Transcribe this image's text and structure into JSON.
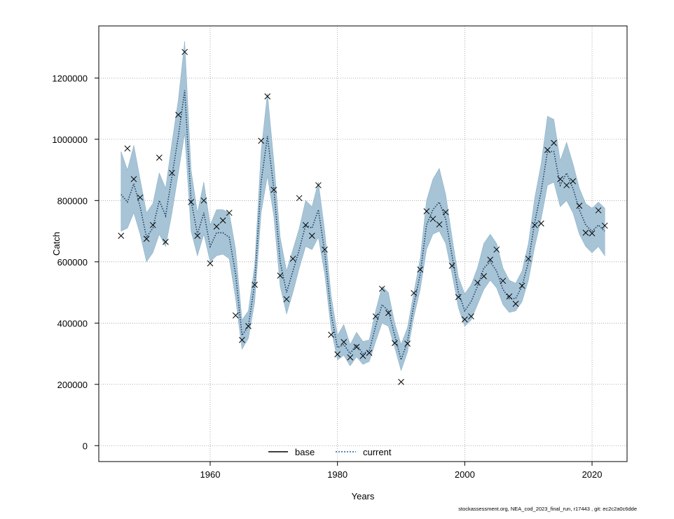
{
  "chart_data": {
    "type": "line",
    "xlabel": "Years",
    "ylabel": "Catch",
    "xlim": [
      1942.5,
      2025.5
    ],
    "ylim": [
      -52000,
      1370000
    ],
    "x_ticks": [
      1960,
      1980,
      2000,
      2020
    ],
    "y_ticks": [
      0,
      200000,
      400000,
      600000,
      800000,
      1000000,
      1200000
    ],
    "grid": true,
    "legend_position": "bottom-center",
    "colors": {
      "band": "#a6c4d6",
      "band_edge": "#8fb3c9",
      "current_line": "#1f3f66",
      "base_line": "#000000",
      "observed_marker": "#000000",
      "grid": "#999999"
    },
    "x": [
      1946,
      1947,
      1948,
      1949,
      1950,
      1951,
      1952,
      1953,
      1954,
      1955,
      1956,
      1957,
      1958,
      1959,
      1960,
      1961,
      1962,
      1963,
      1964,
      1965,
      1966,
      1967,
      1968,
      1969,
      1970,
      1971,
      1972,
      1973,
      1974,
      1975,
      1976,
      1977,
      1978,
      1979,
      1980,
      1981,
      1982,
      1983,
      1984,
      1985,
      1986,
      1987,
      1988,
      1989,
      1990,
      1991,
      1992,
      1993,
      1994,
      1995,
      1996,
      1997,
      1998,
      1999,
      2000,
      2001,
      2002,
      2003,
      2004,
      2005,
      2006,
      2007,
      2008,
      2009,
      2010,
      2011,
      2012,
      2013,
      2014,
      2015,
      2016,
      2017,
      2018,
      2019,
      2020,
      2021,
      2022
    ],
    "series": [
      {
        "name": "current",
        "style": "dotted",
        "estimate": [
          820000,
          795000,
          855000,
          780000,
          680000,
          710000,
          800000,
          750000,
          880000,
          1010000,
          1160000,
          800000,
          690000,
          760000,
          650000,
          695000,
          695000,
          680000,
          560000,
          360000,
          390000,
          530000,
          860000,
          1010000,
          840000,
          600000,
          500000,
          570000,
          640000,
          720000,
          710000,
          770000,
          630000,
          430000,
          320000,
          330000,
          300000,
          330000,
          300000,
          310000,
          390000,
          460000,
          440000,
          360000,
          280000,
          340000,
          460000,
          560000,
          720000,
          770000,
          795000,
          740000,
          620000,
          500000,
          440000,
          470000,
          520000,
          580000,
          600000,
          570000,
          510000,
          480000,
          480000,
          520000,
          600000,
          730000,
          830000,
          960000,
          960000,
          850000,
          890000,
          840000,
          770000,
          720000,
          700000,
          720000,
          700000
        ],
        "lower": [
          700000,
          710000,
          760000,
          690000,
          600000,
          630000,
          690000,
          650000,
          760000,
          890000,
          1020000,
          700000,
          620000,
          690000,
          600000,
          620000,
          625000,
          610000,
          480000,
          315000,
          350000,
          470000,
          760000,
          880000,
          750000,
          520000,
          430000,
          500000,
          580000,
          650000,
          640000,
          680000,
          560000,
          380000,
          280000,
          295000,
          260000,
          290000,
          265000,
          275000,
          340000,
          400000,
          390000,
          320000,
          245000,
          305000,
          420000,
          510000,
          640000,
          690000,
          700000,
          660000,
          560000,
          450000,
          390000,
          410000,
          460000,
          510000,
          540000,
          515000,
          460000,
          435000,
          440000,
          470000,
          540000,
          650000,
          740000,
          850000,
          860000,
          780000,
          800000,
          760000,
          690000,
          650000,
          630000,
          650000,
          620000
        ],
        "upper": [
          960000,
          900000,
          980000,
          870000,
          760000,
          790000,
          890000,
          840000,
          990000,
          1130000,
          1320000,
          900000,
          760000,
          860000,
          720000,
          770000,
          770000,
          760000,
          640000,
          410000,
          440000,
          590000,
          960000,
          1150000,
          930000,
          680000,
          570000,
          640000,
          710000,
          800000,
          780000,
          860000,
          700000,
          490000,
          360000,
          395000,
          330000,
          370000,
          340000,
          345000,
          440000,
          520000,
          500000,
          400000,
          330000,
          385000,
          500000,
          610000,
          800000,
          870000,
          905000,
          820000,
          680000,
          550000,
          495000,
          525000,
          580000,
          660000,
          690000,
          660000,
          580000,
          540000,
          530000,
          570000,
          660000,
          810000,
          920000,
          1075000,
          1065000,
          930000,
          990000,
          920000,
          840000,
          790000,
          775000,
          795000,
          775000
        ]
      },
      {
        "name": "base",
        "style": "solid",
        "estimate": []
      }
    ],
    "observed": [
      685000,
      970000,
      870000,
      810000,
      675000,
      720000,
      940000,
      665000,
      890000,
      1080000,
      1285000,
      795000,
      685000,
      800000,
      595000,
      715000,
      735000,
      760000,
      425000,
      345000,
      390000,
      525000,
      995000,
      1140000,
      835000,
      555000,
      478000,
      610000,
      808000,
      720000,
      685000,
      850000,
      640000,
      362000,
      298000,
      338000,
      288000,
      322000,
      293000,
      303000,
      422000,
      512000,
      433000,
      335000,
      208000,
      333000,
      498000,
      575000,
      765000,
      740000,
      722000,
      762000,
      587000,
      485000,
      412000,
      422000,
      532000,
      553000,
      607000,
      640000,
      538000,
      487000,
      463000,
      522000,
      610000,
      720000,
      725000,
      965000,
      988000,
      870000,
      850000,
      863000,
      783000,
      695000,
      693000,
      768000,
      718000
    ]
  },
  "legend": {
    "items": [
      {
        "label": "base",
        "style": "solid"
      },
      {
        "label": "current",
        "style": "dotted"
      }
    ]
  },
  "footer": "stockassessment.org, NEA_cod_2023_final_run, r17443 , git: ec2c2a0c6dde"
}
